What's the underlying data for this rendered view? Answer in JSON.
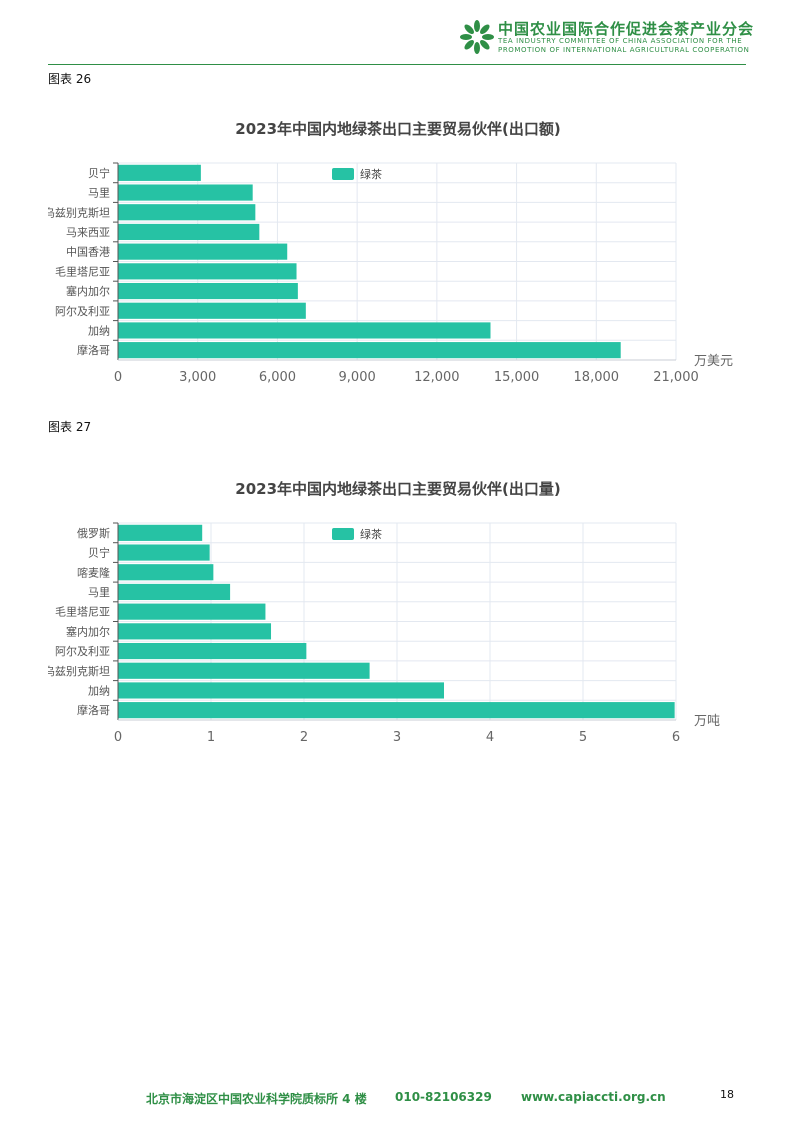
{
  "header": {
    "org_cn": "中国农业国际合作促进会茶产业分会",
    "org_en_line1": "TEA INDUSTRY COMMITTEE OF CHINA ASSOCIATION FOR THE",
    "org_en_line2": "PROMOTION OF INTERNATIONAL AGRICULTURAL COOPERATION",
    "logo_icon": "tea-leaf-logo-icon"
  },
  "captions": [
    "图表 26",
    "图表 27"
  ],
  "colors": {
    "bar": "#26c2a4",
    "brand": "#2f8f46",
    "grid": "#e3e8f0"
  },
  "chart_data": [
    {
      "type": "bar",
      "orientation": "horizontal",
      "title": "2023年中国内地绿茶出口主要贸易伙伴(出口额)",
      "categories": [
        "摩洛哥",
        "加纳",
        "阿尔及利亚",
        "塞内加尔",
        "毛里塔尼亚",
        "中国香港",
        "马来西亚",
        "乌兹别克斯坦",
        "马里",
        "贝宁"
      ],
      "series": [
        {
          "name": "绿茶",
          "values": [
            18900,
            14000,
            7050,
            6750,
            6700,
            6350,
            5300,
            5150,
            5050,
            3100
          ]
        }
      ],
      "xlabel": "万美元",
      "xlim": [
        0,
        21000
      ],
      "ticks": [
        "0",
        "3,000",
        "6,000",
        "9,000",
        "12,000",
        "15,000",
        "18,000",
        "21,000"
      ],
      "tick_values": [
        0,
        3000,
        6000,
        9000,
        12000,
        15000,
        18000,
        21000
      ],
      "legend": "top-center",
      "grid": true
    },
    {
      "type": "bar",
      "orientation": "horizontal",
      "title": "2023年中国内地绿茶出口主要贸易伙伴(出口量)",
      "categories": [
        "摩洛哥",
        "加纳",
        "乌兹别克斯坦",
        "阿尔及利亚",
        "塞内加尔",
        "毛里塔尼亚",
        "马里",
        "喀麦隆",
        "贝宁",
        "俄罗斯"
      ],
      "series": [
        {
          "name": "绿茶",
          "values": [
            5.98,
            3.5,
            2.7,
            2.02,
            1.64,
            1.58,
            1.2,
            1.02,
            0.98,
            0.9
          ]
        }
      ],
      "xlabel": "万吨",
      "xlim": [
        0,
        6
      ],
      "ticks": [
        "0",
        "1",
        "2",
        "3",
        "4",
        "5",
        "6"
      ],
      "tick_values": [
        0,
        1,
        2,
        3,
        4,
        5,
        6
      ],
      "legend": "top-center",
      "grid": true
    }
  ],
  "footer": {
    "address": "北京市海淀区中国农业科学院质标所 4 楼",
    "phone": "010-82106329",
    "website": "www.capiaccti.org.cn"
  },
  "page_number": "18"
}
